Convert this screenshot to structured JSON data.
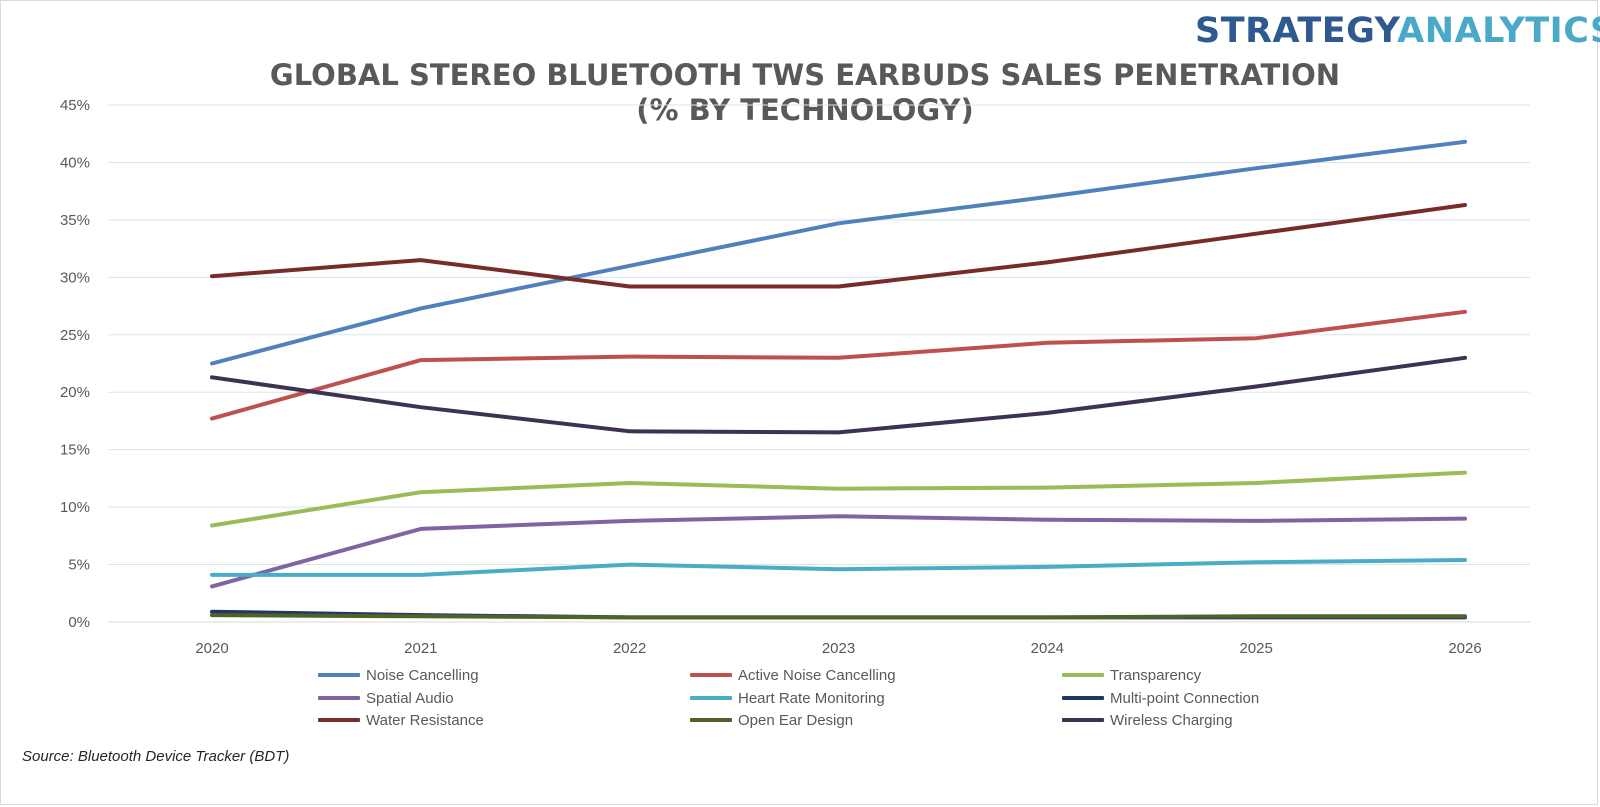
{
  "brand": {
    "part1": "STRATEGY",
    "part2": "ANALYTICS"
  },
  "header": {
    "title_line1": "GLOBAL STEREO BLUETOOTH TWS EARBUDS SALES PENETRATION",
    "title_line2": "(% BY TECHNOLOGY)"
  },
  "source": "Source: Bluetooth Device Tracker (BDT)",
  "chart_data": {
    "type": "line",
    "title": "GLOBAL STEREO BLUETOOTH TWS EARBUDS SALES PENETRATION (% BY TECHNOLOGY)",
    "xlabel": "",
    "ylabel": "",
    "categories": [
      "2020",
      "2021",
      "2022",
      "2023",
      "2024",
      "2025",
      "2026"
    ],
    "ylim": [
      0,
      45
    ],
    "yticks": [
      "0%",
      "5%",
      "10%",
      "15%",
      "20%",
      "25%",
      "30%",
      "35%",
      "40%",
      "45%"
    ],
    "grid": "horizontal",
    "legend_position": "bottom",
    "series": [
      {
        "name": "Noise Cancelling",
        "color": "#4f81bd",
        "values": [
          22.5,
          27.3,
          31.0,
          34.7,
          37.0,
          39.5,
          41.8
        ]
      },
      {
        "name": "Active Noise Cancelling",
        "color": "#c0504d",
        "values": [
          17.7,
          22.8,
          23.1,
          23.0,
          24.3,
          24.7,
          27.0
        ]
      },
      {
        "name": "Transparency",
        "color": "#9bbb59",
        "values": [
          8.4,
          11.3,
          12.1,
          11.6,
          11.7,
          12.1,
          13.0
        ]
      },
      {
        "name": "Spatial Audio",
        "color": "#8064a2",
        "values": [
          3.1,
          8.1,
          8.8,
          9.2,
          8.9,
          8.8,
          9.0
        ]
      },
      {
        "name": "Heart Rate Monitoring",
        "color": "#4bacc6",
        "values": [
          4.1,
          4.1,
          5.0,
          4.6,
          4.8,
          5.2,
          5.4
        ]
      },
      {
        "name": "Multi-point Connection",
        "color": "#1f3864",
        "values": [
          0.9,
          0.6,
          0.4,
          0.4,
          0.4,
          0.4,
          0.4
        ]
      },
      {
        "name": "Water Resistance",
        "color": "#772c2a",
        "values": [
          30.1,
          31.5,
          29.2,
          29.2,
          31.3,
          33.8,
          36.3
        ]
      },
      {
        "name": "Open Ear Design",
        "color": "#4f6228",
        "values": [
          0.6,
          0.5,
          0.4,
          0.4,
          0.4,
          0.5,
          0.5
        ]
      },
      {
        "name": "Wireless Charging",
        "color": "#3f3151",
        "values": [
          21.3,
          18.7,
          16.6,
          16.5,
          18.2,
          20.5,
          23.0
        ]
      }
    ]
  }
}
